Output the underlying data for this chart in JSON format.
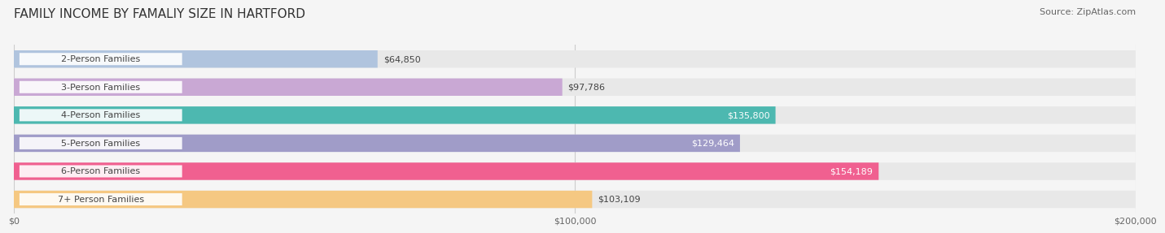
{
  "title": "FAMILY INCOME BY FAMALIY SIZE IN HARTFORD",
  "source": "Source: ZipAtlas.com",
  "categories": [
    "2-Person Families",
    "3-Person Families",
    "4-Person Families",
    "5-Person Families",
    "6-Person Families",
    "7+ Person Families"
  ],
  "values": [
    64850,
    97786,
    135800,
    129464,
    154189,
    103109
  ],
  "bar_colors": [
    "#b0c4de",
    "#c9a8d4",
    "#4db8b0",
    "#a09cc8",
    "#f06090",
    "#f5c882"
  ],
  "label_colors": [
    "#555555",
    "#555555",
    "#ffffff",
    "#ffffff",
    "#ffffff",
    "#555555"
  ],
  "xmax": 200000,
  "xticks": [
    0,
    100000,
    200000
  ],
  "xtick_labels": [
    "$0",
    "$100,000",
    "$200,000"
  ],
  "background_color": "#f5f5f5",
  "bar_bg_color": "#e8e8e8",
  "title_fontsize": 11,
  "source_fontsize": 8,
  "label_fontsize": 8,
  "category_fontsize": 8
}
